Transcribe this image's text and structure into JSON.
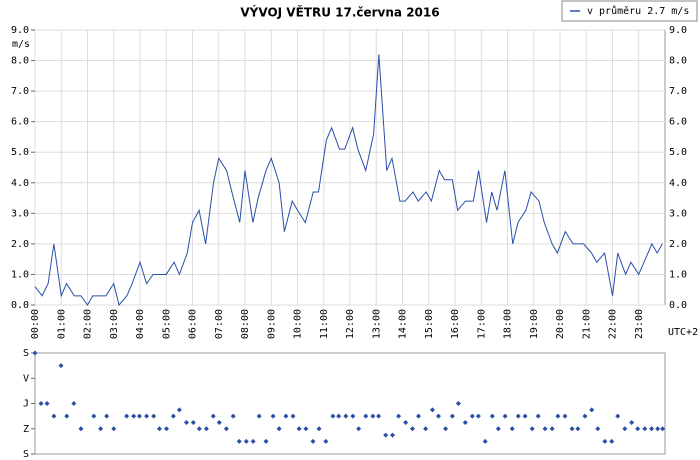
{
  "chart_data": [
    {
      "type": "line",
      "title": "VÝVOJ VĚTRU  17.června 2016",
      "y_label": "m/s",
      "x_label": "UTC+2",
      "legend": "top-right",
      "grid": true,
      "xlim": [
        0,
        24
      ],
      "ylim": [
        0,
        9
      ],
      "xticks": [
        {
          "value": 0,
          "label": "00:00"
        },
        {
          "value": 1,
          "label": "01:00"
        },
        {
          "value": 2,
          "label": "02:00"
        },
        {
          "value": 3,
          "label": "03:00"
        },
        {
          "value": 4,
          "label": "04:00"
        },
        {
          "value": 5,
          "label": "05:00"
        },
        {
          "value": 6,
          "label": "06:00"
        },
        {
          "value": 7,
          "label": "07:00"
        },
        {
          "value": 8,
          "label": "08:00"
        },
        {
          "value": 9,
          "label": "09:00"
        },
        {
          "value": 10,
          "label": "10:00"
        },
        {
          "value": 11,
          "label": "11:00"
        },
        {
          "value": 12,
          "label": "12:00"
        },
        {
          "value": 13,
          "label": "13:00"
        },
        {
          "value": 14,
          "label": "14:00"
        },
        {
          "value": 15,
          "label": "15:00"
        },
        {
          "value": 16,
          "label": "16:00"
        },
        {
          "value": 17,
          "label": "17:00"
        },
        {
          "value": 18,
          "label": "18:00"
        },
        {
          "value": 19,
          "label": "19:00"
        },
        {
          "value": 20,
          "label": "20:00"
        },
        {
          "value": 21,
          "label": "21:00"
        },
        {
          "value": 22,
          "label": "22:00"
        },
        {
          "value": 23,
          "label": "23:00"
        }
      ],
      "yticks": [
        {
          "value": 0,
          "label": "0.0"
        },
        {
          "value": 1,
          "label": "1.0"
        },
        {
          "value": 2,
          "label": "2.0"
        },
        {
          "value": 3,
          "label": "3.0"
        },
        {
          "value": 4,
          "label": "4.0"
        },
        {
          "value": 5,
          "label": "5.0"
        },
        {
          "value": 6,
          "label": "6.0"
        },
        {
          "value": 7,
          "label": "7.0"
        },
        {
          "value": 8,
          "label": "8.0"
        },
        {
          "value": 9,
          "label": "9.0"
        }
      ],
      "x": [
        0,
        0.27,
        0.5,
        0.72,
        1.0,
        1.2,
        1.5,
        1.75,
        2.0,
        2.2,
        2.5,
        2.7,
        3.0,
        3.2,
        3.5,
        3.7,
        4.0,
        4.25,
        4.5,
        4.75,
        5.0,
        5.3,
        5.5,
        5.8,
        6.0,
        6.25,
        6.5,
        6.8,
        7.0,
        7.3,
        7.5,
        7.8,
        8.0,
        8.3,
        8.5,
        8.8,
        9.0,
        9.3,
        9.5,
        9.8,
        10.0,
        10.3,
        10.6,
        10.8,
        11.1,
        11.3,
        11.6,
        11.8,
        12.1,
        12.3,
        12.6,
        12.9,
        13.1,
        13.4,
        13.6,
        13.9,
        14.1,
        14.4,
        14.6,
        14.9,
        15.1,
        15.4,
        15.6,
        15.9,
        16.1,
        16.4,
        16.7,
        16.9,
        17.2,
        17.4,
        17.6,
        17.9,
        18.2,
        18.4,
        18.7,
        18.9,
        19.2,
        19.4,
        19.7,
        19.9,
        20.2,
        20.5,
        20.7,
        20.9,
        21.2,
        21.4,
        21.7,
        22.0,
        22.2,
        22.5,
        22.7,
        23.0,
        23.2,
        23.5,
        23.7,
        23.9
      ],
      "series": [
        {
          "name": "v průměru 2.7 m/s",
          "color": "#2a4fa8",
          "values": [
            0.6,
            0.3,
            0.7,
            2.0,
            0.3,
            0.7,
            0.3,
            0.3,
            0.0,
            0.3,
            0.3,
            0.3,
            0.7,
            0.0,
            0.3,
            0.7,
            1.4,
            0.7,
            1.0,
            1.0,
            1.0,
            1.4,
            1.0,
            1.7,
            2.7,
            3.1,
            2.0,
            4.0,
            4.8,
            4.4,
            3.7,
            2.7,
            4.4,
            2.7,
            3.5,
            4.4,
            4.8,
            4.0,
            2.4,
            3.4,
            3.1,
            2.7,
            3.7,
            3.7,
            5.4,
            5.8,
            5.1,
            5.1,
            5.8,
            5.1,
            4.4,
            5.6,
            8.2,
            4.4,
            4.8,
            3.4,
            3.4,
            3.7,
            3.4,
            3.7,
            3.4,
            4.4,
            4.1,
            4.1,
            3.1,
            3.4,
            3.4,
            4.4,
            2.7,
            3.7,
            3.1,
            4.4,
            2.0,
            2.7,
            3.1,
            3.7,
            3.4,
            2.7,
            2.0,
            1.7,
            2.4,
            2.0,
            2.0,
            2.0,
            1.7,
            1.4,
            1.7,
            0.3,
            1.7,
            1.0,
            1.4,
            1.0,
            1.4,
            2.0,
            1.7,
            2.0
          ]
        }
      ]
    },
    {
      "type": "scatter",
      "color": "#2a4fa8",
      "xlim": [
        0,
        24
      ],
      "ylim": [
        360,
        0
      ],
      "yticks": [
        {
          "value": 0,
          "label": "S"
        },
        {
          "value": 90,
          "label": "V"
        },
        {
          "value": 180,
          "label": "J"
        },
        {
          "value": 270,
          "label": "Z"
        },
        {
          "value": 360,
          "label": "S"
        }
      ],
      "x": [
        0,
        0.23,
        0.46,
        0.72,
        0.99,
        1.21,
        1.48,
        1.75,
        2.24,
        2.5,
        2.73,
        3.0,
        3.49,
        3.76,
        3.98,
        4.25,
        4.52,
        4.74,
        5.01,
        5.27,
        5.5,
        5.77,
        6.03,
        6.26,
        6.53,
        6.79,
        7.02,
        7.29,
        7.55,
        7.78,
        8.05,
        8.31,
        8.54,
        8.8,
        9.07,
        9.3,
        9.56,
        9.83,
        10.06,
        10.32,
        10.59,
        10.82,
        11.08,
        11.35,
        11.57,
        11.84,
        12.11,
        12.33,
        12.6,
        12.87,
        13.09,
        13.36,
        13.62,
        13.85,
        14.12,
        14.38,
        14.61,
        14.88,
        15.14,
        15.37,
        15.64,
        15.9,
        16.13,
        16.39,
        16.66,
        16.89,
        17.15,
        17.42,
        17.65,
        17.91,
        18.18,
        18.41,
        18.67,
        18.94,
        19.17,
        19.43,
        19.7,
        19.92,
        20.19,
        20.46,
        20.68,
        20.95,
        21.21,
        21.44,
        21.71,
        21.97,
        22.2,
        22.47,
        22.73,
        22.96,
        23.23,
        23.49,
        23.72,
        23.91
      ],
      "values": [
        0,
        180,
        180,
        225,
        45,
        225,
        180,
        270,
        225,
        270,
        225,
        270,
        225,
        225,
        225,
        225,
        225,
        270,
        270,
        225,
        202.5,
        247.5,
        247.5,
        270,
        270,
        225,
        247.5,
        270,
        225,
        315,
        315,
        315,
        225,
        315,
        225,
        270,
        225,
        225,
        270,
        270,
        315,
        270,
        315,
        225,
        225,
        225,
        225,
        270,
        225,
        225,
        225,
        292.5,
        292.5,
        225,
        247.5,
        270,
        225,
        270,
        202.5,
        225,
        270,
        225,
        180,
        247.5,
        225,
        225,
        315,
        225,
        270,
        225,
        270,
        225,
        225,
        270,
        225,
        270,
        270,
        225,
        225,
        270,
        270,
        225,
        202.5,
        270,
        315,
        315,
        225,
        270,
        247.5,
        270,
        270,
        270,
        270,
        270
      ]
    }
  ]
}
